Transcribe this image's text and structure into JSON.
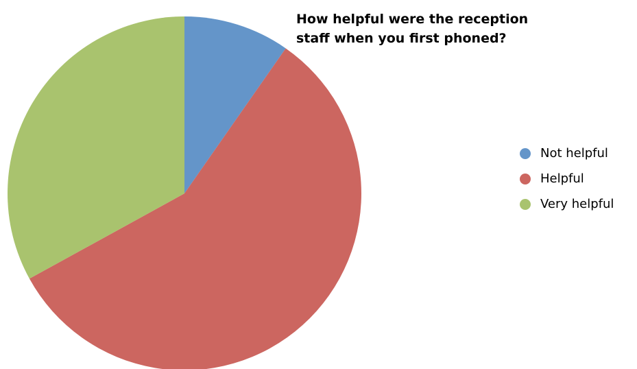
{
  "chart_data": {
    "type": "pie",
    "title_lines": [
      "How helpful  were the reception",
      "staff when you first phoned?"
    ],
    "categories": [
      "Not helpful",
      "Helpful",
      "Very helpful"
    ],
    "values": [
      9.7,
      57.3,
      33.0
    ],
    "colors": [
      "#6495c9",
      "#cc6660",
      "#a9c36e"
    ],
    "start_angle_deg": 0,
    "direction": "clockwise",
    "legend_position": "right"
  }
}
